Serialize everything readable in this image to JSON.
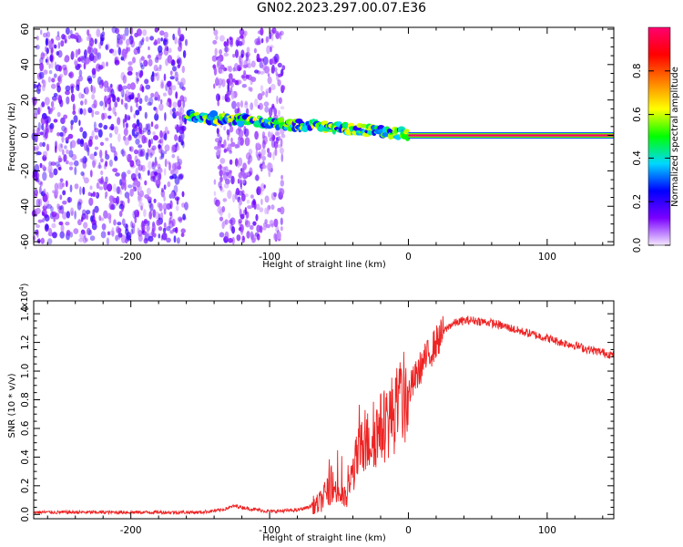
{
  "figure_title": "GN02.2023.297.00.07.E36",
  "chart_data": [
    {
      "type": "heatmap",
      "xlabel": "Height of straight line (km)",
      "ylabel": "Frequency (Hz)",
      "xlim": [
        -270,
        148
      ],
      "ylim": [
        -62,
        61
      ],
      "xticks": [
        -200,
        -100,
        0,
        100
      ],
      "xtick_labels": [
        "-200",
        "-100",
        "0",
        "100"
      ],
      "yticks": [
        -60,
        -40,
        -20,
        0,
        20,
        40,
        60
      ],
      "ytick_labels": [
        "-60",
        "-40",
        "-20",
        "0",
        "20",
        "40",
        "60"
      ],
      "colorbar": {
        "label": "Normalized spectral amplitude",
        "range": [
          0,
          1
        ],
        "ticks": [
          0,
          0.2,
          0.4,
          0.6,
          0.8
        ],
        "tick_labels": [
          "0.0",
          "0.2",
          "0.4",
          "0.6",
          "0.8"
        ],
        "colors": [
          "#f4e8ff",
          "#7a00ff",
          "#0000ff",
          "#00d8ff",
          "#00ff00",
          "#ffff00",
          "#ff8000",
          "#ff0000",
          "#ff0070"
        ]
      },
      "regions": [
        {
          "desc": "noise",
          "x_range": [
            -270,
            -160
          ],
          "freq_range": [
            -60,
            60
          ],
          "level": 0.15
        },
        {
          "desc": "noise",
          "x_range": [
            -140,
            -90
          ],
          "freq_range": [
            -60,
            60
          ],
          "level": 0.12
        },
        {
          "desc": "signal",
          "x_range": [
            -160,
            0
          ],
          "freq_start": 11,
          "freq_end": 1,
          "level": 0.5
        },
        {
          "desc": "signal",
          "x_range": [
            0,
            148
          ],
          "freq": 0,
          "level": 1.0
        }
      ]
    },
    {
      "type": "line",
      "xlabel": "Height of straight line (km)",
      "ylabel": "SNR (10 * v/v)",
      "scale_label": "(x10",
      "scale_exponent": "4",
      "scale_suffix": ")",
      "xlim": [
        -270,
        148
      ],
      "ylim": [
        -0.03,
        1.49
      ],
      "xticks": [
        -200,
        -100,
        0,
        100
      ],
      "xtick_labels": [
        "-200",
        "-100",
        "0",
        "100"
      ],
      "yticks": [
        0,
        0.2,
        0.4,
        0.6,
        0.8,
        1.0,
        1.2,
        1.4
      ],
      "ytick_labels": [
        "0.0",
        "0.2",
        "0.4",
        "0.6",
        "0.8",
        "1.0",
        "1.2",
        "1.4"
      ],
      "color": "#ee2222",
      "envelope_x": [
        -270,
        -150,
        -135,
        -125,
        -115,
        -100,
        -80,
        -65,
        -55,
        -50,
        -45,
        -40,
        -35,
        -30,
        -25,
        -20,
        -15,
        -10,
        -5,
        0,
        5,
        10,
        15,
        20,
        25,
        30,
        35,
        40,
        45,
        50,
        60,
        70,
        80,
        90,
        100,
        110,
        120,
        130,
        140,
        148
      ],
      "envelope_y": [
        0.015,
        0.015,
        0.03,
        0.06,
        0.04,
        0.02,
        0.03,
        0.07,
        0.2,
        0.15,
        0.1,
        0.3,
        0.45,
        0.5,
        0.55,
        0.6,
        0.65,
        0.72,
        0.78,
        0.85,
        0.95,
        1.05,
        1.12,
        1.2,
        1.27,
        1.32,
        1.34,
        1.35,
        1.355,
        1.35,
        1.335,
        1.31,
        1.28,
        1.255,
        1.23,
        1.2,
        1.18,
        1.15,
        1.13,
        1.11
      ]
    }
  ]
}
